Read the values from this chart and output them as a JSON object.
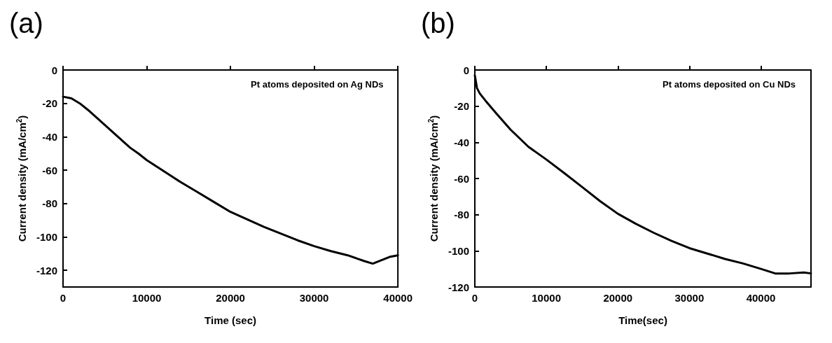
{
  "chart_data": [
    {
      "type": "line",
      "title": "(a)",
      "xlabel": "Time (sec)",
      "ylabel": "Current density (mA/cm$^{2}$)",
      "annotations": [
        "Pt atoms deposited on Ag NDs"
      ],
      "x": [
        0,
        1000,
        2000,
        3000,
        4000,
        5000,
        6000,
        7000,
        8000,
        9000,
        10000,
        12000,
        14000,
        16000,
        18000,
        20000,
        22000,
        24000,
        26000,
        28000,
        30000,
        32000,
        34000,
        36000,
        37000,
        38000,
        39000,
        40000
      ],
      "series": [
        {
          "color": "#000000",
          "values": [
            -16,
            -17,
            -20,
            -24,
            -28.5,
            -33,
            -37.5,
            -42,
            -46.5,
            -50,
            -54,
            -60.5,
            -67,
            -73,
            -79,
            -85,
            -89.5,
            -94,
            -98,
            -102,
            -105.5,
            -108.5,
            -111,
            -114.5,
            -116,
            -114,
            -112,
            -111
          ]
        }
      ],
      "xlim": [
        0,
        40000
      ],
      "ylim": [
        -130,
        0
      ],
      "xticks": [
        0,
        10000,
        20000,
        30000,
        40000
      ],
      "yticks": [
        -120,
        -100,
        -80,
        -60,
        -40,
        -20,
        0
      ]
    },
    {
      "type": "line",
      "title": "(b)",
      "xlabel": "Time(sec)",
      "ylabel": "Current density (mA/cm$^{2}$)",
      "annotations": [
        "Pt atoms deposited on Cu NDs"
      ],
      "x": [
        0,
        300,
        700,
        1500,
        3000,
        5000,
        7500,
        10000,
        12500,
        15000,
        17500,
        20000,
        22500,
        25000,
        27500,
        30000,
        32500,
        35000,
        37500,
        40000,
        42000,
        44000,
        46000,
        47000
      ],
      "series": [
        {
          "color": "#000000",
          "values": [
            -3,
            -10,
            -13,
            -17,
            -24,
            -33,
            -42.5,
            -49.5,
            -57,
            -64.7,
            -72.5,
            -79.5,
            -85,
            -90,
            -94.5,
            -98.5,
            -101.5,
            -104.5,
            -107,
            -110,
            -112.5,
            -112.5,
            -112,
            -112.5
          ]
        }
      ],
      "xlim": [
        0,
        47000
      ],
      "ylim": [
        -120,
        0
      ],
      "xticks": [
        0,
        10000,
        20000,
        30000,
        40000
      ],
      "yticks": [
        -120,
        -100,
        -80,
        -60,
        -40,
        -20,
        0
      ]
    }
  ]
}
